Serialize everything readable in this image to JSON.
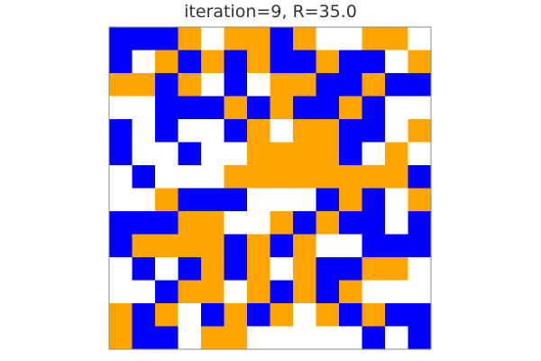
{
  "chart_data": {
    "type": "heatmap",
    "title": "iteration=9, R=35.0",
    "rows": 14,
    "cols": 14,
    "palette": {
      "0": "#ffffff",
      "1": "#0000ff",
      "2": "#ffa500"
    },
    "grid": [
      [
        1,
        1,
        1,
        2,
        0,
        2,
        2,
        1,
        2,
        0,
        0,
        2,
        2,
        0
      ],
      [
        1,
        0,
        2,
        1,
        2,
        1,
        2,
        1,
        1,
        2,
        1,
        1,
        0,
        2
      ],
      [
        2,
        2,
        1,
        2,
        0,
        1,
        0,
        2,
        2,
        1,
        1,
        2,
        1,
        1
      ],
      [
        0,
        0,
        1,
        1,
        1,
        2,
        1,
        2,
        1,
        1,
        2,
        1,
        0,
        0
      ],
      [
        1,
        0,
        1,
        0,
        0,
        1,
        2,
        0,
        2,
        2,
        1,
        1,
        0,
        2
      ],
      [
        1,
        0,
        0,
        1,
        0,
        0,
        2,
        2,
        2,
        2,
        1,
        0,
        2,
        0
      ],
      [
        0,
        1,
        0,
        0,
        0,
        2,
        2,
        2,
        2,
        2,
        2,
        2,
        2,
        1
      ],
      [
        0,
        0,
        2,
        1,
        1,
        1,
        0,
        0,
        0,
        1,
        2,
        1,
        0,
        2
      ],
      [
        1,
        1,
        1,
        2,
        2,
        0,
        0,
        2,
        1,
        2,
        1,
        1,
        0,
        1
      ],
      [
        1,
        2,
        2,
        2,
        2,
        1,
        2,
        1,
        2,
        0,
        0,
        1,
        1,
        1
      ],
      [
        0,
        1,
        0,
        1,
        2,
        1,
        2,
        0,
        2,
        1,
        1,
        2,
        2,
        0
      ],
      [
        0,
        0,
        1,
        2,
        2,
        0,
        2,
        1,
        2,
        1,
        2,
        0,
        0,
        0
      ],
      [
        2,
        1,
        2,
        0,
        1,
        2,
        1,
        2,
        0,
        2,
        1,
        2,
        1,
        1
      ],
      [
        2,
        1,
        1,
        0,
        2,
        2,
        0,
        0,
        0,
        0,
        0,
        1,
        0,
        1
      ]
    ]
  }
}
